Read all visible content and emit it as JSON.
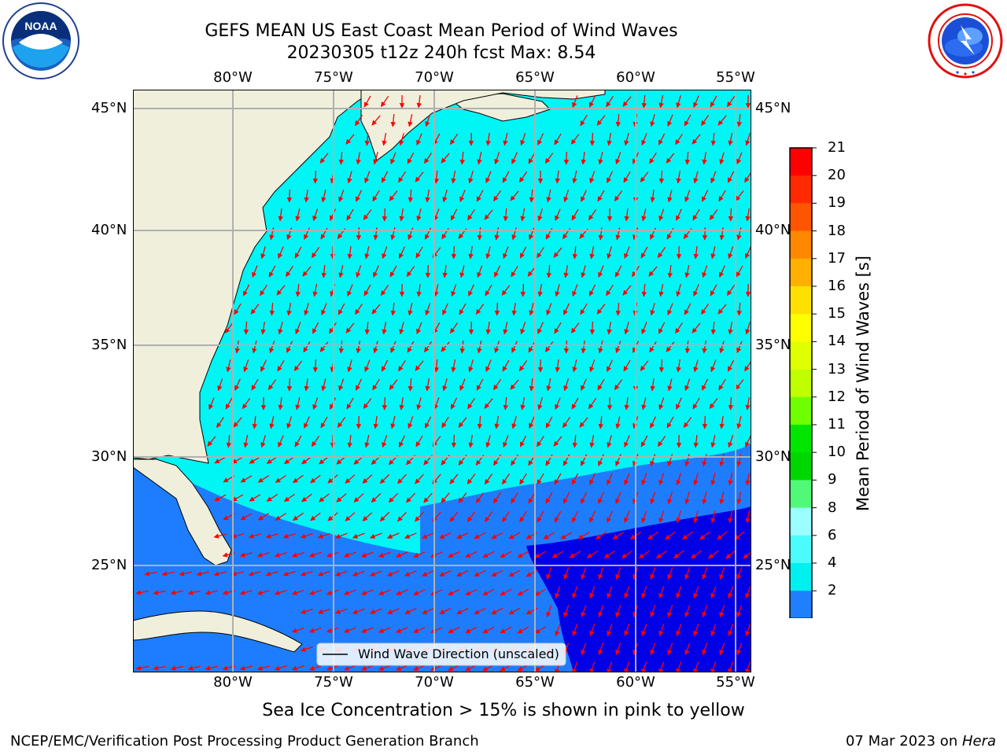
{
  "header": {
    "title_line1": "GEFS MEAN US East Coast Mean Period of Wind Waves",
    "title_line2": "20230305 t12z 240h fcst   Max: 8.54"
  },
  "logos": {
    "noaa_text": "NOAA",
    "noaa_ring": "NATIONAL OCEANIC AND ATMOSPHERIC ADMINISTRATION · U.S. DEPARTMENT OF COMMERCE",
    "nws_ring": "NATIONAL WEATHER SERVICE"
  },
  "map": {
    "lon_labels": [
      "80°W",
      "75°W",
      "70°W",
      "65°W",
      "60°W",
      "55°W"
    ],
    "lat_labels": [
      "45°N",
      "40°N",
      "35°N",
      "30°N",
      "25°N"
    ],
    "legend_text": "Wind Wave Direction (unscaled)",
    "colors": {
      "land": "#efefdc",
      "ocean_2_4": "#1e7dff",
      "ocean_4_6": "#00f5f5",
      "ocean_lt2": "#0000e6",
      "arrow": "#ff0000"
    }
  },
  "colorbar": {
    "label": "Mean Period of Wind Waves [s]",
    "ticks": [
      "21",
      "20",
      "19",
      "18",
      "17",
      "16",
      "15",
      "14",
      "13",
      "12",
      "11",
      "10",
      "9",
      "8",
      "6",
      "4",
      "2"
    ],
    "colors": [
      "#ff0000",
      "#ff2a00",
      "#ff5500",
      "#ff8800",
      "#ffb000",
      "#ffe000",
      "#ffff00",
      "#e0ff00",
      "#c0ff00",
      "#70ff00",
      "#00e600",
      "#00d700",
      "#50fa78",
      "#9cffff",
      "#4afcfc",
      "#00f0f0",
      "#1f7fff"
    ],
    "under_color": "#0000ff"
  },
  "caption": "Sea Ice Concentration > 15% is shown in pink to yellow",
  "footer": {
    "left": "NCEP/EMC/Verification Post Processing Product Generation Branch",
    "right_date": "07 Mar 2023 on ",
    "right_host": "Hera"
  }
}
